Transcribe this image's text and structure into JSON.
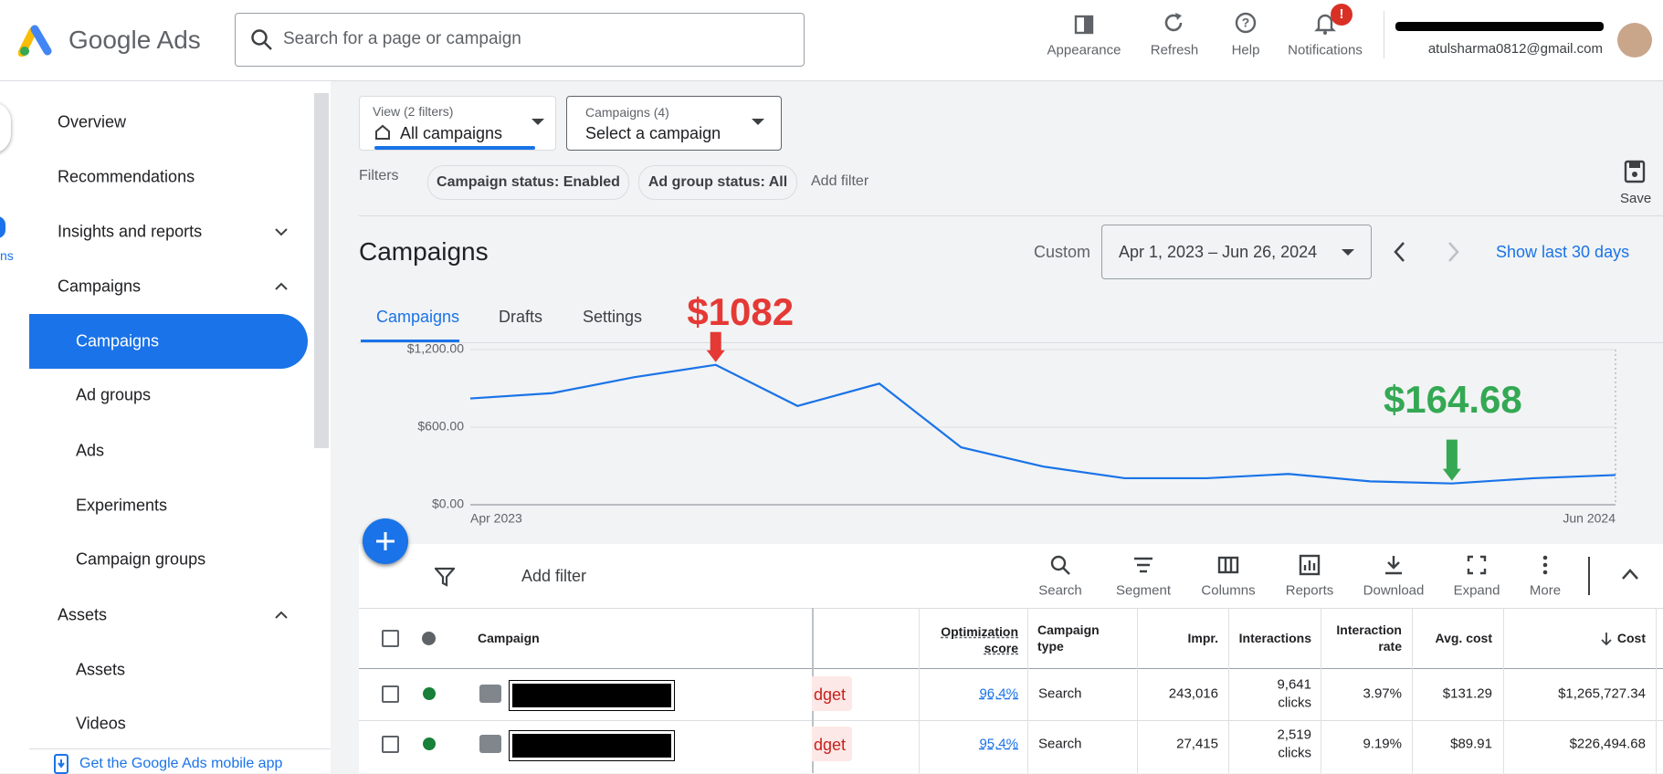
{
  "header": {
    "brand": "Google Ads",
    "search_placeholder": "Search for a page or campaign",
    "actions": [
      "Appearance",
      "Refresh",
      "Help",
      "Notifications"
    ],
    "notification_badge": "!",
    "email": "atulsharma0812@gmail.com"
  },
  "sidebar": {
    "partial_label": "ns",
    "items": [
      "Overview",
      "Recommendations",
      "Insights and reports",
      "Campaigns",
      "Campaigns",
      "Ad groups",
      "Ads",
      "Experiments",
      "Campaign groups",
      "Assets",
      "Assets",
      "Videos"
    ],
    "mobile_link": "Get the Google Ads mobile app"
  },
  "view_selector": {
    "label": "View (2 filters)",
    "value": "All campaigns"
  },
  "campaign_selector": {
    "label": "Campaigns (4)",
    "value": "Select a campaign"
  },
  "filters": {
    "label": "Filters",
    "chips": [
      "Campaign status: Enabled",
      "Ad group status: All"
    ],
    "add": "Add filter"
  },
  "save": "Save",
  "page_title": "Campaigns",
  "date": {
    "mode": "Custom",
    "range": "Apr 1, 2023 – Jun 26, 2024",
    "shortcut": "Show last 30 days"
  },
  "tabs": [
    "Campaigns",
    "Drafts",
    "Settings"
  ],
  "chart_data": {
    "type": "line",
    "categories": [
      "Apr 2023",
      null,
      null,
      null,
      null,
      null,
      null,
      null,
      null,
      null,
      null,
      null,
      null,
      null,
      "Jun 2024"
    ],
    "values": [
      822,
      863,
      986,
      1082,
      764,
      937,
      444,
      296,
      205,
      205,
      238,
      181,
      164.68,
      205,
      230
    ],
    "color": "#1a73e8",
    "ylim": [
      0,
      1200
    ],
    "yticks": [
      {
        "value": 0,
        "label": "$0.00"
      },
      {
        "value": 600,
        "label": "$600.00"
      },
      {
        "value": 1200,
        "label": "$1,200.00"
      }
    ],
    "grid": true,
    "annotations": [
      {
        "label": "$1082",
        "value": 1082,
        "color": "#e53935"
      },
      {
        "label": "$164.68",
        "value": 164.68,
        "color": "#34a853"
      }
    ]
  },
  "toolbar": {
    "add_filter": "Add filter",
    "tools": [
      "Search",
      "Segment",
      "Columns",
      "Reports",
      "Download",
      "Expand",
      "More"
    ]
  },
  "table": {
    "columns": [
      "Campaign",
      "Optimization score",
      "Campaign type",
      "Impr.",
      "Interactions",
      "Interaction rate",
      "Avg. cost",
      "Cost"
    ],
    "rows": [
      {
        "status": "dget",
        "optimization_score": "96.4%",
        "campaign_type": "Search",
        "impressions": "243,016",
        "interactions": "9,641",
        "interaction_unit": "clicks",
        "interaction_rate": "3.97%",
        "avg_cost": "$131.29",
        "cost": "$1,265,727.34"
      },
      {
        "status": "dget",
        "optimization_score": "95.4%",
        "campaign_type": "Search",
        "impressions": "27,415",
        "interactions": "2,519",
        "interaction_unit": "clicks",
        "interaction_rate": "9.19%",
        "avg_cost": "$89.91",
        "cost": "$226,494.68"
      }
    ]
  }
}
